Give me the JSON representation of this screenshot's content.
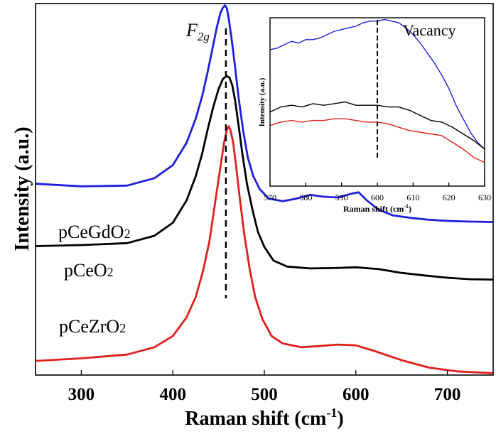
{
  "chart_data": [
    {
      "type": "line",
      "xlabel": "Raman shift (cm",
      "xlabel_sup": "-1",
      "xlabel_end": ")",
      "ylabel": "Intensity (a.u.)",
      "xlim": [
        250,
        750
      ],
      "ylim": [
        0,
        100
      ],
      "xticks": [
        300,
        400,
        500,
        600,
        700
      ],
      "grid": false,
      "annotation": {
        "text": "F",
        "sub": "2g",
        "x": 458
      },
      "series": [
        {
          "name": "pCeGdO2",
          "label_main": "pCeGdO",
          "label_sub": "2",
          "color": "#1f1fdc",
          "x": [
            250,
            300,
            350,
            380,
            400,
            415,
            425,
            432,
            438,
            443,
            448,
            452,
            455,
            457,
            459,
            461,
            464,
            468,
            472,
            477,
            482,
            488,
            495,
            505,
            520,
            535,
            550,
            565,
            580,
            595,
            603,
            612,
            625,
            640,
            660,
            680,
            700,
            725,
            750
          ],
          "y": [
            51.5,
            50.8,
            51.0,
            53.0,
            56.5,
            62.5,
            69.0,
            75.0,
            81.5,
            87.5,
            93.5,
            97.5,
            99.0,
            99.5,
            98.8,
            96.0,
            91.0,
            83.0,
            74.5,
            65.5,
            58.5,
            53.5,
            50.0,
            47.5,
            46.8,
            47.5,
            48.5,
            48.0,
            47.8,
            48.8,
            49.2,
            47.0,
            44.5,
            43.0,
            42.3,
            41.8,
            41.5,
            41.3,
            41.2
          ]
        },
        {
          "name": "pCeO2",
          "label_main": "pCeO",
          "label_sub": "2",
          "color": "#000000",
          "x": [
            250,
            300,
            350,
            380,
            400,
            415,
            425,
            432,
            438,
            444,
            450,
            455,
            459,
            462,
            465,
            468,
            472,
            476,
            481,
            487,
            493,
            500,
            510,
            525,
            550,
            575,
            600,
            625,
            650,
            675,
            700,
            725,
            750
          ],
          "y": [
            34.7,
            35.0,
            35.5,
            37.5,
            41.0,
            47.0,
            53.5,
            59.5,
            66.0,
            72.0,
            77.0,
            79.8,
            80.5,
            80.0,
            78.0,
            74.0,
            67.0,
            59.5,
            51.5,
            44.5,
            38.5,
            34.5,
            30.8,
            29.2,
            28.7,
            28.8,
            29.0,
            28.5,
            27.5,
            26.8,
            26.2,
            25.8,
            25.7
          ]
        },
        {
          "name": "pCeZrO2",
          "label_main": "pCeZrO",
          "label_sub": "2",
          "color": "#e0201c",
          "x": [
            250,
            300,
            350,
            380,
            400,
            415,
            425,
            433,
            440,
            446,
            452,
            456,
            459,
            461,
            463,
            466,
            469,
            473,
            478,
            484,
            490,
            498,
            508,
            520,
            540,
            560,
            580,
            600,
            620,
            650,
            680,
            710,
            750
          ],
          "y": [
            3.8,
            4.5,
            5.5,
            7.5,
            10.5,
            15.5,
            21.0,
            28.0,
            36.0,
            46.0,
            56.0,
            62.5,
            66.0,
            67.0,
            66.0,
            62.5,
            56.5,
            48.0,
            38.0,
            28.5,
            21.0,
            15.0,
            10.5,
            8.5,
            7.5,
            7.8,
            8.2,
            8.0,
            6.5,
            4.0,
            2.0,
            1.0,
            0.5
          ]
        }
      ]
    },
    {
      "type": "line",
      "xlabel": "Raman shift (cm",
      "xlabel_sup": "-1",
      "xlabel_end": ")",
      "ylabel": "Intensity (a.u.)",
      "xlim": [
        570,
        630
      ],
      "ylim": [
        0,
        100
      ],
      "xticks": [
        570,
        580,
        590,
        600,
        610,
        620,
        630
      ],
      "grid": false,
      "annotation": {
        "text": "Vacancy",
        "x": 600
      },
      "series": [
        {
          "name": "pCeGdO2",
          "color": "#1f1fdc",
          "x": [
            570,
            572,
            574,
            576,
            578,
            580,
            582,
            584,
            586,
            588,
            590,
            592,
            594,
            596,
            598,
            600,
            602,
            604,
            606,
            608,
            610,
            612,
            614,
            616,
            618,
            620,
            622,
            624,
            626,
            628,
            630
          ],
          "y": [
            81,
            82,
            84,
            86,
            85,
            87,
            87,
            88,
            90,
            92,
            93,
            94,
            95,
            97,
            98,
            98,
            99,
            98,
            97,
            94,
            90,
            85,
            79,
            73,
            66,
            58,
            48,
            40,
            32,
            26,
            22
          ]
        },
        {
          "name": "pCeO2",
          "color": "#000000",
          "x": [
            570,
            573,
            576,
            579,
            582,
            585,
            588,
            591,
            594,
            597,
            600,
            603,
            606,
            609,
            612,
            615,
            618,
            621,
            624,
            627,
            630
          ],
          "y": [
            44,
            47,
            48,
            47,
            49,
            48,
            49,
            50,
            48,
            48,
            48,
            47,
            47,
            45,
            42,
            39,
            38,
            35,
            31,
            27,
            22
          ]
        },
        {
          "name": "pCeZrO2",
          "color": "#e0201c",
          "x": [
            570,
            573,
            576,
            579,
            582,
            585,
            588,
            591,
            594,
            597,
            600,
            603,
            606,
            609,
            612,
            615,
            618,
            621,
            624,
            627,
            630
          ],
          "y": [
            36,
            38,
            39,
            38,
            39,
            39,
            40,
            40,
            39,
            38,
            38,
            37,
            35,
            33,
            32,
            31,
            30,
            26,
            22,
            17,
            14
          ]
        }
      ]
    }
  ]
}
